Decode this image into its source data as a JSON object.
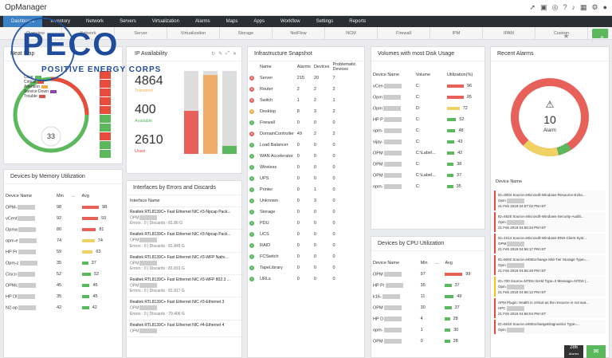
{
  "app": {
    "title": "OpManager"
  },
  "nav": {
    "items": [
      "Dashboard",
      "Inventory",
      "Network",
      "Servers",
      "Virtualization",
      "Alarms",
      "Maps",
      "Apps",
      "Workflow",
      "Settings",
      "Reports"
    ]
  },
  "subnav": {
    "items": [
      "Overview",
      "Network",
      "Server",
      "Virtualization",
      "Storage",
      "NetFlow",
      "NCM",
      "Firewall",
      "IPM",
      "IPAM",
      "Custom"
    ]
  },
  "logo": {
    "word": "PECO",
    "tagline": "POSITIVE ENERGY CORPS"
  },
  "heatmap": {
    "title": "Heat Map",
    "count": "33",
    "legend": [
      "Clear",
      "Critical",
      "Attention",
      "Service Down",
      "Trouble"
    ],
    "colors": [
      "#5cb85c",
      "#e74c3c",
      "#f0ad4e",
      "#8e44ad",
      "#d9534f"
    ]
  },
  "ipavail": {
    "title": "IP Availability",
    "v1": "4864",
    "l1": "Transient",
    "v2": "400",
    "l2": "Available",
    "v3": "2610",
    "l3": "Used"
  },
  "infra": {
    "title": "Infrastructure Snapshot",
    "headers": [
      "Name",
      "Alarms",
      "Devices",
      "Problematic Devices"
    ],
    "rows": [
      {
        "name": "Server",
        "a": "215",
        "d": "20",
        "p": "7",
        "s": "r"
      },
      {
        "name": "Router",
        "a": "2",
        "d": "2",
        "p": "2",
        "s": "r"
      },
      {
        "name": "Switch",
        "a": "1",
        "d": "2",
        "p": "1",
        "s": "r"
      },
      {
        "name": "Desktop",
        "a": "8",
        "d": "3",
        "p": "2",
        "s": "o"
      },
      {
        "name": "Firewall",
        "a": "0",
        "d": "0",
        "p": "0",
        "s": "g"
      },
      {
        "name": "DomainController",
        "a": "49",
        "d": "2",
        "p": "2",
        "s": "r"
      },
      {
        "name": "Load Balancer",
        "a": "0",
        "d": "0",
        "p": "0",
        "s": "g"
      },
      {
        "name": "WAN Accelerator",
        "a": "0",
        "d": "0",
        "p": "0",
        "s": "g"
      },
      {
        "name": "Wireless",
        "a": "0",
        "d": "0",
        "p": "0",
        "s": "g"
      },
      {
        "name": "UPS",
        "a": "0",
        "d": "0",
        "p": "0",
        "s": "g"
      },
      {
        "name": "Printer",
        "a": "0",
        "d": "1",
        "p": "0",
        "s": "g"
      },
      {
        "name": "Unknown",
        "a": "0",
        "d": "3",
        "p": "0",
        "s": "g"
      },
      {
        "name": "Storage",
        "a": "0",
        "d": "0",
        "p": "0",
        "s": "g"
      },
      {
        "name": "PDU",
        "a": "0",
        "d": "0",
        "p": "0",
        "s": "g"
      },
      {
        "name": "UCS",
        "a": "0",
        "d": "0",
        "p": "0",
        "s": "g"
      },
      {
        "name": "RAID",
        "a": "0",
        "d": "0",
        "p": "0",
        "s": "g"
      },
      {
        "name": "FCSwitch",
        "a": "0",
        "d": "0",
        "p": "0",
        "s": "g"
      },
      {
        "name": "TapeLibrary",
        "a": "0",
        "d": "0",
        "p": "0",
        "s": "g"
      },
      {
        "name": "URLs",
        "a": "0",
        "d": "0",
        "p": "0",
        "s": "g"
      }
    ]
  },
  "disk": {
    "title": "Volumes with most Disk Usage",
    "headers": [
      "Device Name",
      "Volume",
      "Utilization(%)"
    ],
    "rows": [
      {
        "n": "vCen",
        "v": "C:",
        "u": 96
      },
      {
        "n": "Opm",
        "v": "C:",
        "u": 95
      },
      {
        "n": "Opm",
        "v": "D:",
        "u": 72
      },
      {
        "n": "HP P",
        "v": "C:",
        "u": 52
      },
      {
        "n": "opm-",
        "v": "C:",
        "u": 48
      },
      {
        "n": "vijay-",
        "v": "C:",
        "u": 43
      },
      {
        "n": "OPM",
        "v": "C:\\Label...",
        "u": 42
      },
      {
        "n": "OPM",
        "v": "C:",
        "u": 38
      },
      {
        "n": "OPM",
        "v": "C:\\Label...",
        "u": 37
      },
      {
        "n": "opm-",
        "v": "C:",
        "u": 35
      }
    ]
  },
  "alarms": {
    "title": "Recent Alarms",
    "count": "10",
    "label": "Alarm",
    "device_header": "Device Name",
    "items": [
      {
        "t": "ID=3004 Source=Microsoft-Windows-Resource-Exha...",
        "d": "Opm",
        "ts": "21 Feb 2019 04:57:02 PM IST",
        "c": "r"
      },
      {
        "t": "ID=4625 Source=Microsoft-Windows-Security-Auditi...",
        "d": "Opm",
        "ts": "21 Feb 2019 04:56:34 PM IST",
        "c": "r"
      },
      {
        "t": "ID=1014 Source=Microsoft-Windows-DNS-Client Syst...",
        "d": "OPM",
        "ts": "21 Feb 2019 04:56:17 PM IST",
        "c": "r"
      },
      {
        "t": "ID=6002 Source=MSExchange Mid-Tier Storage Type=...",
        "d": "Opm",
        "ts": "21 Feb 2019 04:56:49 PM IST",
        "c": "r"
      },
      {
        "t": "ID=700 Source=NTDS ISAM Type=3 Message=NTDS (...",
        "d": "Opm",
        "ts": "21 Feb 2019 04:56:12 PM IST",
        "c": "y"
      },
      {
        "t": "APM Plugin: Health is critical as the resource is not ava...",
        "d": "HPC",
        "ts": "21 Feb 2019 04:56:04 PM IST",
        "c": "r"
      },
      {
        "t": "ID=5010 Source=MSExchangeDiagnostics Type=...",
        "d": "Opm",
        "ts": "",
        "c": "r"
      }
    ]
  },
  "memory": {
    "title": "Devices by Memory Utilization",
    "headers": [
      "Device Name",
      "Min",
      "...",
      "Avg"
    ],
    "rows": [
      {
        "n": "OPM-",
        "mn": "98",
        "av": 98,
        "c": "r"
      },
      {
        "n": "vCent",
        "mn": "92",
        "av": 93,
        "c": "r"
      },
      {
        "n": "Opma",
        "mn": "80",
        "av": 81,
        "c": "r"
      },
      {
        "n": "opm-e",
        "mn": "74",
        "av": 74,
        "c": "y"
      },
      {
        "n": "HP Pr",
        "mn": "59",
        "av": 63,
        "c": "y"
      },
      {
        "n": "Opm-z",
        "mn": "35",
        "av": 37,
        "c": "g"
      },
      {
        "n": "Cisco",
        "mn": "52",
        "av": 52,
        "c": "g"
      },
      {
        "n": "OPMc",
        "mn": "45",
        "av": 45,
        "c": "g"
      },
      {
        "n": "HP Dl",
        "mn": "35",
        "av": 45,
        "c": "g"
      },
      {
        "n": "N2-op",
        "mn": "42",
        "av": 42,
        "c": "g"
      }
    ]
  },
  "iface": {
    "title": "Interfaces by Errors and Discards",
    "header": "Interface Name",
    "items": [
      {
        "h": "Realtek RTL8139C+ Fast Ethernet NIC #3-Npcap Pack...",
        "d": "OPM",
        "s": "Errors : 0 | Discards : 81.86 G"
      },
      {
        "h": "Realtek RTL8139C+ Fast Ethernet NIC #3-Npcap Pack...",
        "d": "OPM",
        "s": "Errors : 0 | Discards : 81.845 G"
      },
      {
        "h": "Realtek RTL8139C+ Fast Ethernet NIC #3-WFP Nativ...",
        "d": "OPM",
        "s": "Errors : 0 | Discards : 81.831 G"
      },
      {
        "h": "Realtek RTL8139C+ Fast Ethernet NIC #3-WFP 802.3 ...",
        "d": "OPM",
        "s": "Errors : 0 | Discards : 81.817 G"
      },
      {
        "h": "Realtek RTL8139C+ Fast Ethernet NIC #3-Ethernet 3",
        "d": "OPM",
        "s": "Errors : 0 | Discards : 79.406 G"
      },
      {
        "h": "Realtek RTL8139C+ Fast Ethernet NIC #4-Ethernet 4",
        "d": "OPM",
        "s": ""
      }
    ]
  },
  "cpu": {
    "title": "Devices by CPU Utilization",
    "headers": [
      "Device Name",
      "Min",
      "...",
      "Avg"
    ],
    "rows": [
      {
        "n": "OPM",
        "mn": "97",
        "av": 99,
        "c": "r"
      },
      {
        "n": "HP Pr",
        "mn": "35",
        "av": 37,
        "c": "g"
      },
      {
        "n": "k16-",
        "mn": "11",
        "av": 49,
        "c": "g"
      },
      {
        "n": "OPM",
        "mn": "30",
        "av": 37,
        "c": "g"
      },
      {
        "n": "HP D",
        "mn": "4",
        "av": 28,
        "c": "g"
      },
      {
        "n": "opm-",
        "mn": "1",
        "av": 30,
        "c": "g"
      },
      {
        "n": "OPM",
        "mn": "0",
        "av": 28,
        "c": "g"
      }
    ]
  },
  "footer": {
    "badge": "286",
    "badge_label": "Alarms"
  }
}
